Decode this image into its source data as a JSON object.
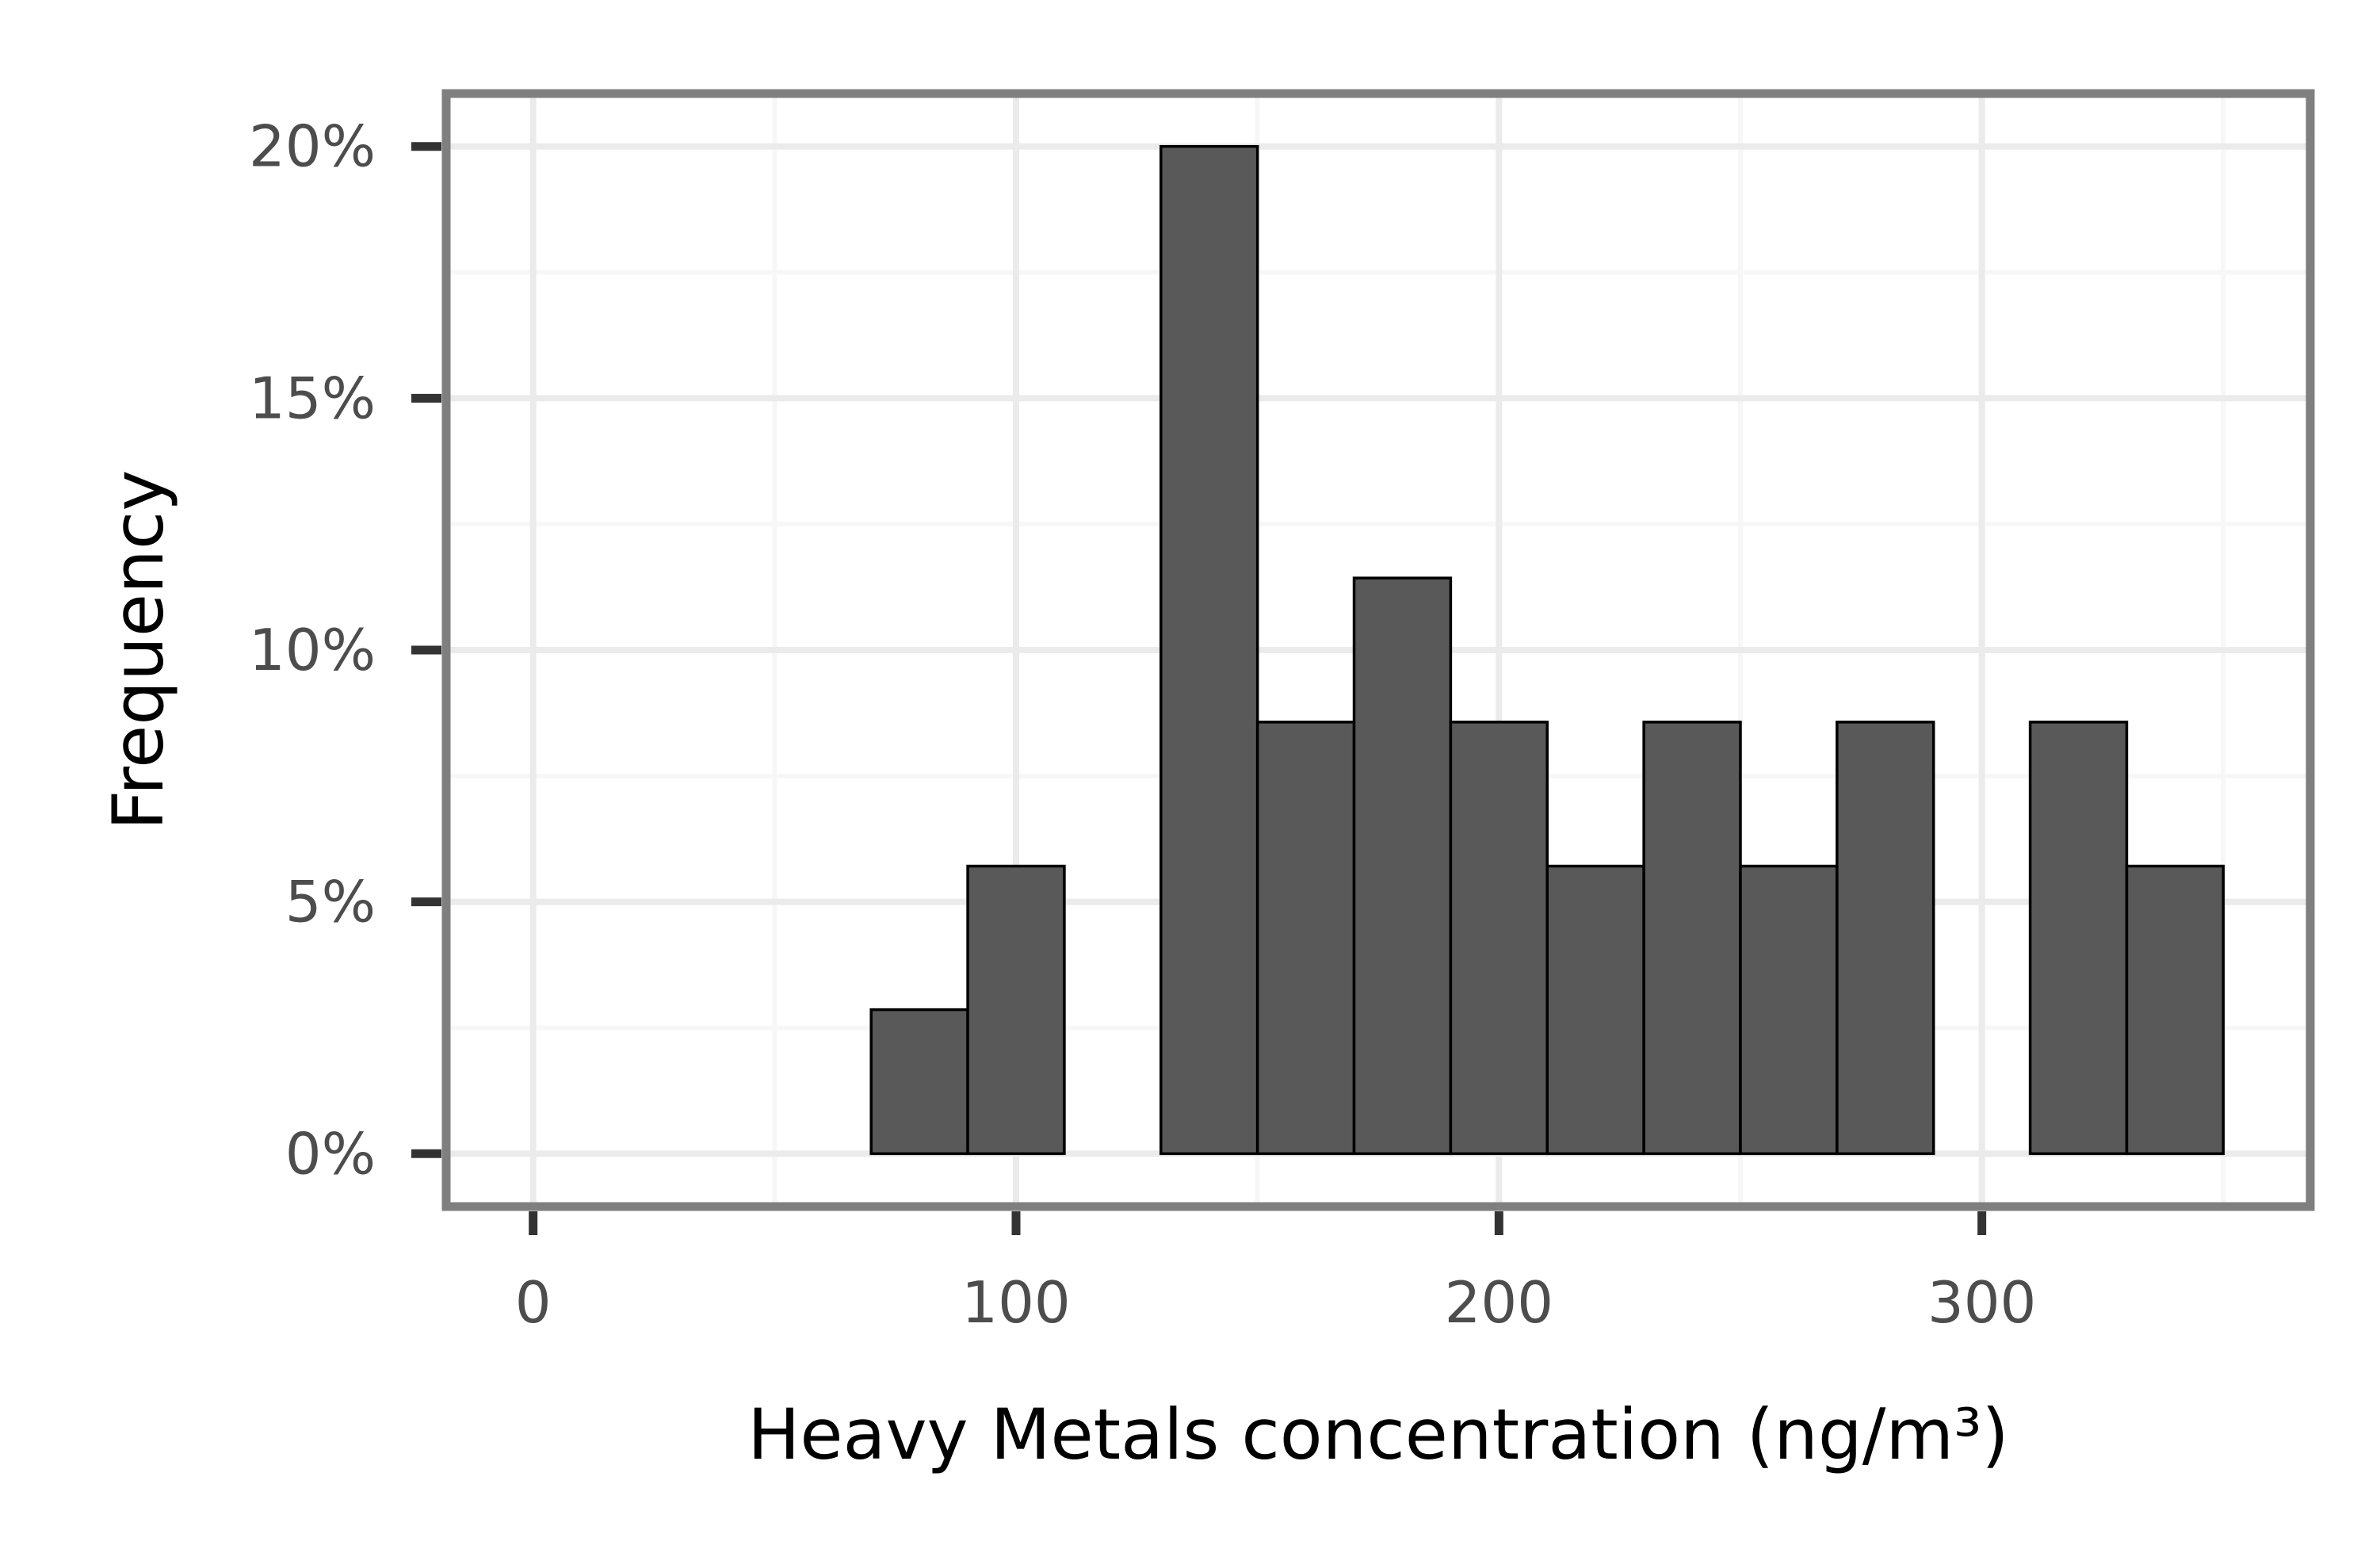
{
  "chart_data": {
    "type": "bar",
    "subtype": "histogram",
    "title": "",
    "xlabel": "Heavy Metals concentration (ng/m³)",
    "ylabel": "Frequency",
    "xlim": [
      -18,
      368
    ],
    "ylim": [
      -0.0105,
      0.2105
    ],
    "bin_width": 20,
    "bins": [
      {
        "x0": 10,
        "x1": 30,
        "value": 0
      },
      {
        "x0": 30,
        "x1": 50,
        "value": 0
      },
      {
        "x0": 50,
        "x1": 70,
        "value": 0
      },
      {
        "x0": 70,
        "x1": 90,
        "value": 0.0286
      },
      {
        "x0": 90,
        "x1": 110,
        "value": 0.0571
      },
      {
        "x0": 110,
        "x1": 130,
        "value": 0
      },
      {
        "x0": 130,
        "x1": 150,
        "value": 0.2
      },
      {
        "x0": 150,
        "x1": 170,
        "value": 0.0857
      },
      {
        "x0": 170,
        "x1": 190,
        "value": 0.1143
      },
      {
        "x0": 190,
        "x1": 210,
        "value": 0.0857
      },
      {
        "x0": 210,
        "x1": 230,
        "value": 0.0571
      },
      {
        "x0": 230,
        "x1": 250,
        "value": 0.0857
      },
      {
        "x0": 250,
        "x1": 270,
        "value": 0.0571
      },
      {
        "x0": 270,
        "x1": 290,
        "value": 0.0857
      },
      {
        "x0": 290,
        "x1": 310,
        "value": 0
      },
      {
        "x0": 310,
        "x1": 330,
        "value": 0.0857
      },
      {
        "x0": 330,
        "x1": 350,
        "value": 0.0571
      }
    ],
    "x_ticks": [
      {
        "value": 0,
        "label": "0"
      },
      {
        "value": 100,
        "label": "100"
      },
      {
        "value": 200,
        "label": "200"
      },
      {
        "value": 300,
        "label": "300"
      }
    ],
    "x_minor_ticks": [
      50,
      150,
      250,
      350
    ],
    "y_ticks": [
      {
        "value": 0,
        "label": "0%"
      },
      {
        "value": 0.05,
        "label": "5%"
      },
      {
        "value": 0.1,
        "label": "10%"
      },
      {
        "value": 0.15,
        "label": "15%"
      },
      {
        "value": 0.2,
        "label": "20%"
      }
    ],
    "y_minor_ticks": [
      0.025,
      0.075,
      0.125,
      0.175
    ],
    "grid": true,
    "legend": "none",
    "colors": {
      "bar_fill": "#595959",
      "bar_stroke": "#000000",
      "panel_border": "#7f7f7f",
      "grid_major": "#ebebeb",
      "grid_minor": "#f7f7f7",
      "tick": "#333333",
      "tick_label": "#4d4d4d",
      "axis_title": "#000000"
    }
  }
}
